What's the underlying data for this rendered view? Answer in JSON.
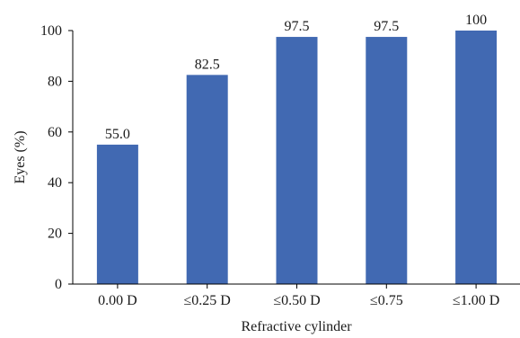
{
  "chart_data": {
    "type": "bar",
    "categories": [
      "0.00 D",
      "≤0.25 D",
      "≤0.50 D",
      "≤0.75",
      "≤1.00 D"
    ],
    "values": [
      55.0,
      82.5,
      97.5,
      97.5,
      100
    ],
    "data_labels": [
      "55.0",
      "82.5",
      "97.5",
      "97.5",
      "100"
    ],
    "xlabel": "Refractive cylinder",
    "ylabel": "Eyes (%)",
    "ylim": [
      0,
      100
    ],
    "yticks": [
      0,
      20,
      40,
      60,
      80,
      100
    ],
    "grid": false,
    "bar_color": "#4169b2"
  }
}
